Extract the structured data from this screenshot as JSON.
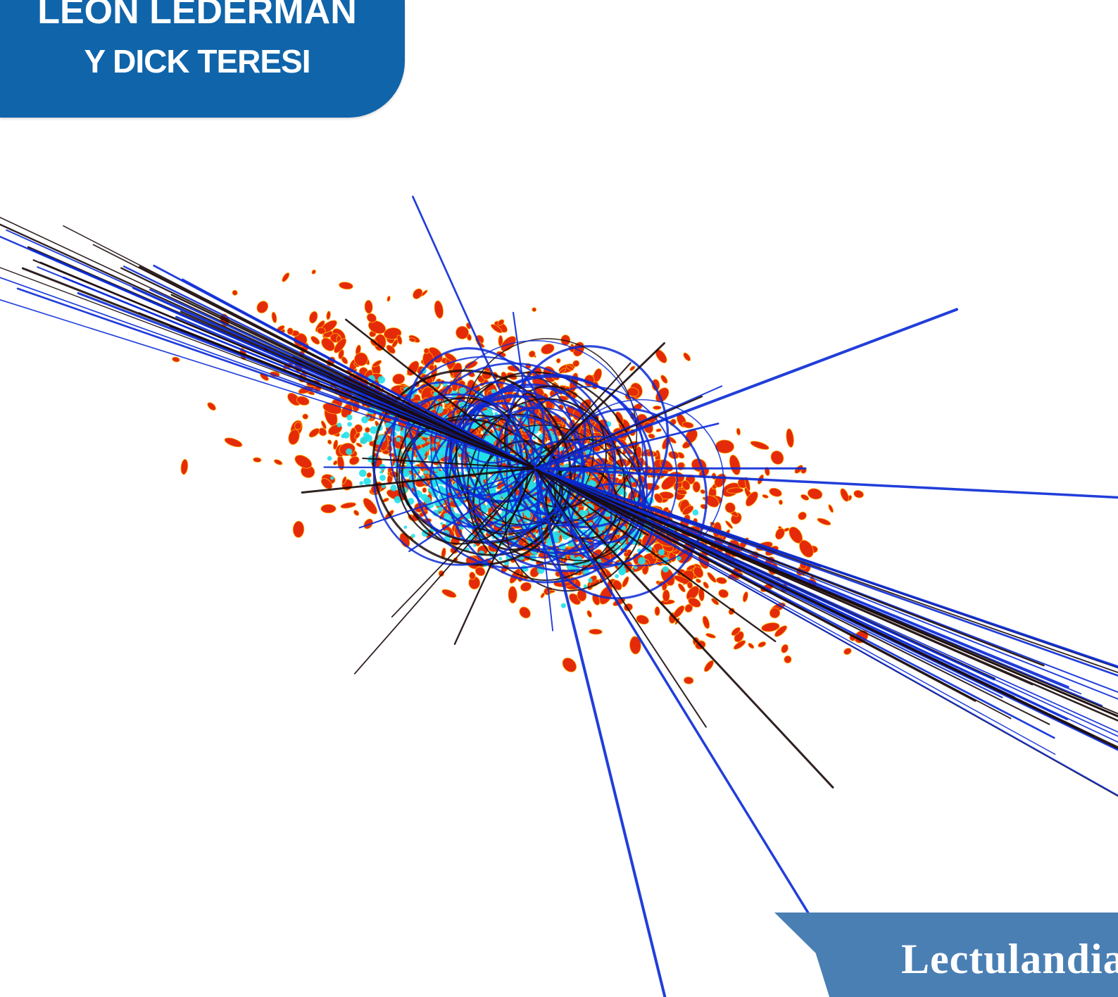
{
  "cover": {
    "author": "LEON LEDERMAN",
    "coauthor": "Y DICK TERESI",
    "publisher": "Lectulandia"
  },
  "colors": {
    "author_panel": "#0f64aa",
    "publisher_ribbon": "#4a7fb4",
    "hits_red": "#e52a0a",
    "hits_cyan": "#22e0ea",
    "track_blue": "#0a2ad6",
    "track_dark": "#1a0a0a"
  },
  "artwork": {
    "subject": "particle-collision-event-display"
  }
}
